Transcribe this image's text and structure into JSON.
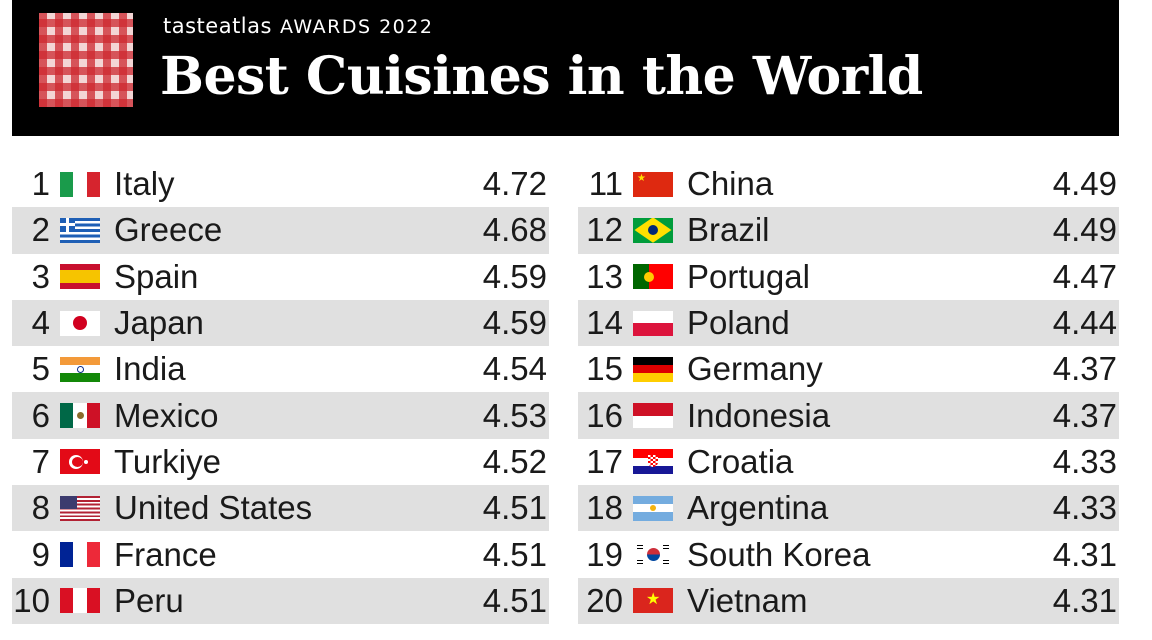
{
  "header": {
    "brand_name": "tasteatlas",
    "award_label": "AWARDS 2022",
    "title": "Best Cuisines in the World"
  },
  "rankings_left": [
    {
      "rank": "1",
      "country": "Italy",
      "score": "4.72",
      "flag": "italy-flag-icon"
    },
    {
      "rank": "2",
      "country": "Greece",
      "score": "4.68",
      "flag": "greece-flag-icon"
    },
    {
      "rank": "3",
      "country": "Spain",
      "score": "4.59",
      "flag": "spain-flag-icon"
    },
    {
      "rank": "4",
      "country": "Japan",
      "score": "4.59",
      "flag": "japan-flag-icon"
    },
    {
      "rank": "5",
      "country": "India",
      "score": "4.54",
      "flag": "india-flag-icon"
    },
    {
      "rank": "6",
      "country": "Mexico",
      "score": "4.53",
      "flag": "mexico-flag-icon"
    },
    {
      "rank": "7",
      "country": "Turkiye",
      "score": "4.52",
      "flag": "turkiye-flag-icon"
    },
    {
      "rank": "8",
      "country": "United States",
      "score": "4.51",
      "flag": "united-states-flag-icon"
    },
    {
      "rank": "9",
      "country": "France",
      "score": "4.51",
      "flag": "france-flag-icon"
    },
    {
      "rank": "10",
      "country": "Peru",
      "score": "4.51",
      "flag": "peru-flag-icon"
    }
  ],
  "rankings_right": [
    {
      "rank": "11",
      "country": "China",
      "score": "4.49",
      "flag": "china-flag-icon"
    },
    {
      "rank": "12",
      "country": "Brazil",
      "score": "4.49",
      "flag": "brazil-flag-icon"
    },
    {
      "rank": "13",
      "country": "Portugal",
      "score": "4.47",
      "flag": "portugal-flag-icon"
    },
    {
      "rank": "14",
      "country": "Poland",
      "score": "4.44",
      "flag": "poland-flag-icon"
    },
    {
      "rank": "15",
      "country": "Germany",
      "score": "4.37",
      "flag": "germany-flag-icon"
    },
    {
      "rank": "16",
      "country": "Indonesia",
      "score": "4.37",
      "flag": "indonesia-flag-icon"
    },
    {
      "rank": "17",
      "country": "Croatia",
      "score": "4.33",
      "flag": "croatia-flag-icon"
    },
    {
      "rank": "18",
      "country": "Argentina",
      "score": "4.33",
      "flag": "argentina-flag-icon"
    },
    {
      "rank": "19",
      "country": "South Korea",
      "score": "4.31",
      "flag": "south-korea-flag-icon"
    },
    {
      "rank": "20",
      "country": "Vietnam",
      "score": "4.31",
      "flag": "vietnam-flag-icon"
    }
  ],
  "colors": {
    "banner_background": "#000000",
    "title_text": "#ffffff",
    "row_stripe": "#e0e0e0",
    "logo_red": "#cd2830"
  }
}
